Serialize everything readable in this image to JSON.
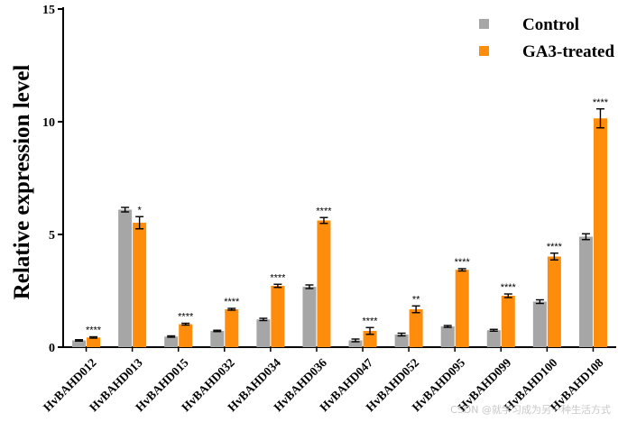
{
  "chart_data": {
    "type": "bar",
    "ylabel": "Relative expression level",
    "xlabel": "",
    "ylim": [
      0,
      15
    ],
    "yticks": [
      "0",
      "5",
      "10",
      "15"
    ],
    "grid": false,
    "legend_position": "top-right",
    "categories": [
      "HvBAHD012",
      "HvBAHD013",
      "HvBAHD015",
      "HvBAHD032",
      "HvBAHD034",
      "HvBAHD036",
      "HvBAHD047",
      "HvBAHD052",
      "HvBAHD095",
      "HvBAHD099",
      "HvBAHD100",
      "HvBAHD108"
    ],
    "series": [
      {
        "name": "Control",
        "color": "#a6a6a6",
        "values": [
          0.3,
          6.1,
          0.47,
          0.72,
          1.23,
          2.68,
          0.3,
          0.56,
          0.92,
          0.75,
          2.02,
          4.9
        ],
        "errors": [
          0.03,
          0.1,
          0.03,
          0.03,
          0.05,
          0.08,
          0.06,
          0.06,
          0.04,
          0.04,
          0.08,
          0.13
        ]
      },
      {
        "name": "GA3-treated",
        "color": "#ff8c0a",
        "values": [
          0.43,
          5.52,
          1.02,
          1.68,
          2.72,
          5.62,
          0.72,
          1.68,
          3.43,
          2.28,
          4.02,
          10.15
        ],
        "errors": [
          0.03,
          0.27,
          0.04,
          0.04,
          0.07,
          0.13,
          0.15,
          0.15,
          0.05,
          0.08,
          0.15,
          0.42
        ]
      }
    ],
    "significance": [
      "****",
      "*",
      "****",
      "****",
      "****",
      "****",
      "****",
      "**",
      "****",
      "****",
      "****",
      "****"
    ]
  },
  "watermark": "CSDN @就学习成为另一种生活方式"
}
